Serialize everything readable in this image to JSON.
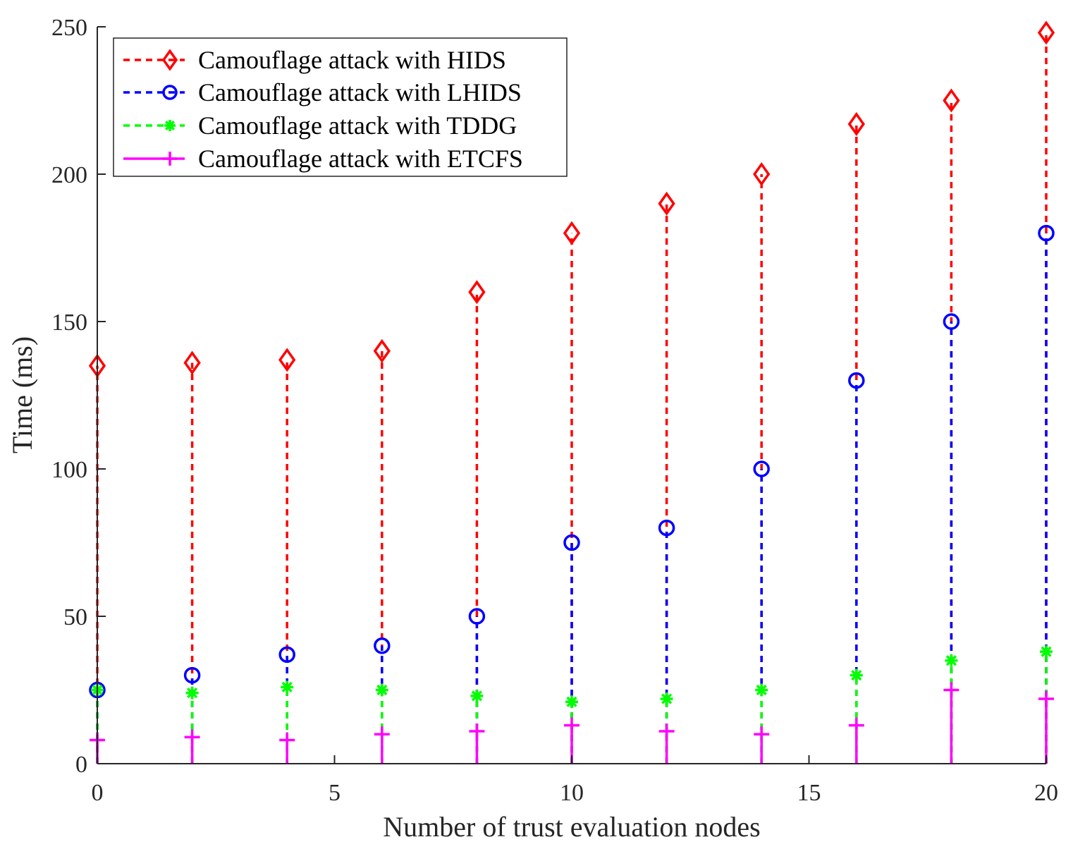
{
  "chart_data": {
    "type": "stem",
    "title": "",
    "xlabel": "Number of trust evaluation nodes",
    "ylabel": "Time (ms)",
    "xlim": [
      0,
      20
    ],
    "ylim": [
      0,
      250
    ],
    "xticks": [
      "0",
      "5",
      "10",
      "15",
      "20"
    ],
    "yticks": [
      "0",
      "50",
      "100",
      "150",
      "200",
      "250"
    ],
    "legend_position": "top-left",
    "x": [
      0,
      2,
      4,
      6,
      8,
      10,
      12,
      14,
      16,
      18,
      20
    ],
    "series": [
      {
        "name": "Camouflage attack with HIDS",
        "color": "#ff0000",
        "marker": "diamond",
        "line": "dashed",
        "values": [
          135,
          136,
          137,
          140,
          160,
          180,
          190,
          200,
          217,
          225,
          248
        ]
      },
      {
        "name": "Camouflage attack with LHIDS",
        "color": "#0000ff",
        "marker": "circle",
        "line": "dashed",
        "values": [
          25,
          30,
          37,
          40,
          50,
          75,
          80,
          100,
          130,
          150,
          180
        ]
      },
      {
        "name": "Camouflage attack with TDDG",
        "color": "#00ff00",
        "marker": "asterisk",
        "line": "dashed",
        "values": [
          25,
          24,
          26,
          25,
          23,
          21,
          22,
          25,
          30,
          35,
          38
        ]
      },
      {
        "name": "Camouflage attack with ETCFS",
        "color": "#ff00ff",
        "marker": "plus",
        "line": "solid",
        "values": [
          8,
          9,
          8,
          10,
          11,
          13,
          11,
          10,
          13,
          25,
          22
        ]
      }
    ]
  }
}
